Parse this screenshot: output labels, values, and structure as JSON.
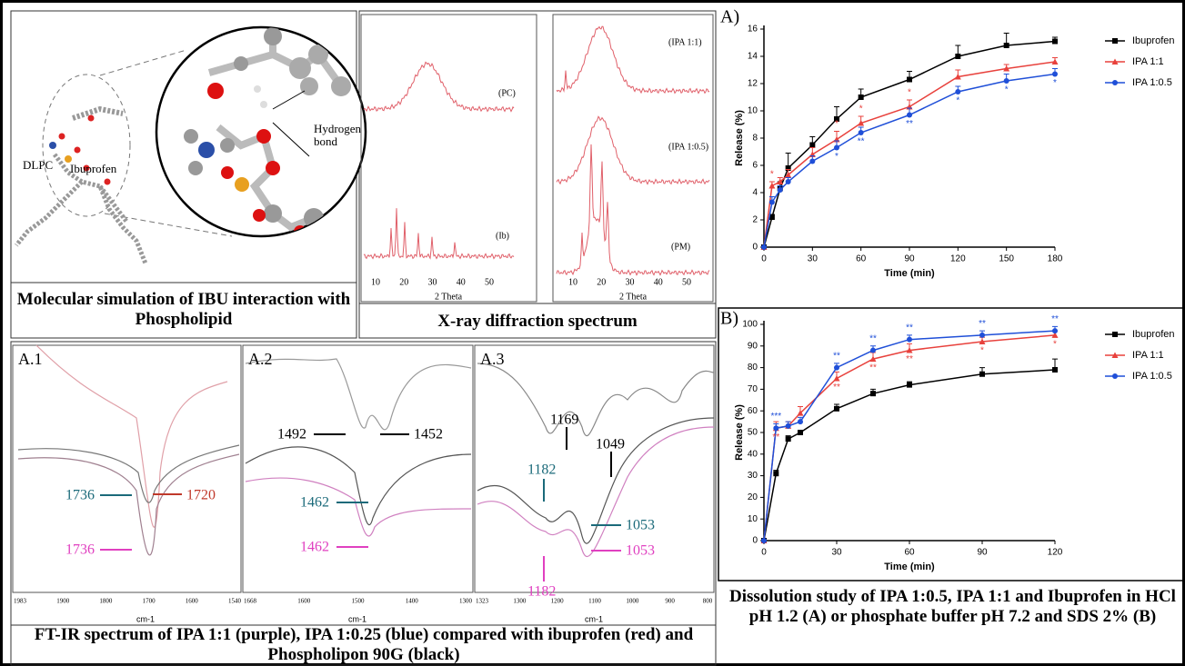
{
  "panels": {
    "molecular": {
      "ibuprofen": "Ibuprofen",
      "dlpc": "DLPC",
      "hbond": "Hydrogen bond",
      "caption": "Molecular simulation of IBU interaction with Phospholipid"
    },
    "xrd": {
      "pc": "(PC)",
      "ib": "(Ib)",
      "ipa11": "(IPA 1:1)",
      "ipa105": "(IPA 1:0.5)",
      "pm": "(PM)",
      "left_xticks": [
        10,
        20,
        30,
        40,
        50
      ],
      "right_xticks": [
        10,
        20,
        30,
        40,
        50
      ],
      "left_xlabel": "2 Theta",
      "right_xlabel": "2 Theta",
      "caption": "X-ray diffraction spectrum"
    },
    "ftir": {
      "a1": {
        "title": "A.1",
        "ticks": [
          1983,
          1900,
          1800,
          1700,
          1600,
          1540
        ],
        "unit": "cm-1",
        "labels": [
          "1736",
          "1720",
          "1736"
        ]
      },
      "a2": {
        "title": "A.2",
        "ticks": [
          1668,
          1600,
          1500,
          1400,
          1300
        ],
        "unit": "cm-1",
        "labels": [
          "1492",
          "1452",
          "1462",
          "1462"
        ]
      },
      "a3": {
        "title": "A.3",
        "ticks": [
          1323,
          1300,
          1200,
          1100,
          1000,
          900,
          800
        ],
        "unit": "cm-1",
        "labels": [
          "1169",
          "1049",
          "1182",
          "1053",
          "1182",
          "1053"
        ]
      },
      "caption": "FT-IR spectrum of IPA 1:1 (purple), IPA 1:0.25 (blue) compared with ibuprofen (red) and Phospholipon 90G (black)"
    },
    "dissolution": {
      "caption": "Dissolution study of IPA 1:0.5, IPA 1:1 and Ibuprofen in HCl pH 1.2 (A) or phosphate buffer pH 7.2 and SDS 2% (B)"
    }
  },
  "chart_data": [
    {
      "type": "line",
      "panel_label": "A)",
      "xlabel": "Time (min)",
      "ylabel": "Release (%)",
      "x": [
        0,
        5,
        10,
        15,
        30,
        45,
        60,
        90,
        120,
        150,
        180
      ],
      "xlim": [
        0,
        180
      ],
      "xticks": [
        0,
        30,
        60,
        90,
        120,
        150,
        180
      ],
      "ylim": [
        0,
        16
      ],
      "yticks": [
        0,
        2,
        4,
        6,
        8,
        10,
        12,
        14,
        16
      ],
      "series": [
        {
          "name": "Ibuprofen",
          "color": "#000000",
          "marker": "square",
          "values": [
            0,
            2.2,
            4.3,
            5.8,
            7.5,
            9.4,
            11.0,
            12.3,
            14.0,
            14.8,
            15.1
          ],
          "errors": [
            0,
            0.2,
            0.5,
            1.1,
            0.6,
            0.9,
            0.6,
            0.6,
            0.8,
            0.9,
            0.3
          ]
        },
        {
          "name": "IPA 1:1",
          "color": "#e8413c",
          "marker": "triangle",
          "values": [
            0,
            4.5,
            4.8,
            5.3,
            6.8,
            7.9,
            9.1,
            10.3,
            12.5,
            13.1,
            13.6
          ],
          "errors": [
            0,
            0.3,
            0.3,
            0.4,
            0.5,
            0.6,
            0.5,
            0.5,
            0.5,
            0.3,
            0.3
          ]
        },
        {
          "name": "IPA 1:0.5",
          "color": "#1f4fd8",
          "marker": "circle",
          "values": [
            0,
            3.3,
            4.2,
            4.8,
            6.3,
            7.3,
            8.4,
            9.7,
            11.4,
            12.2,
            12.7
          ],
          "errors": [
            0,
            0.4,
            0.3,
            0.3,
            0.4,
            0.5,
            0.4,
            0.5,
            0.4,
            0.5,
            0.4
          ]
        }
      ],
      "annotations": [
        {
          "text": "*",
          "x": 5,
          "series": 1,
          "position": "above"
        },
        {
          "text": "*",
          "x": 45,
          "series": 1,
          "position": "above"
        },
        {
          "text": "*",
          "x": 60,
          "series": 1,
          "position": "above"
        },
        {
          "text": "*",
          "x": 90,
          "series": 1,
          "position": "above"
        },
        {
          "text": "*",
          "x": 45,
          "series": 2,
          "position": "below"
        },
        {
          "text": "**",
          "x": 60,
          "series": 2,
          "position": "below"
        },
        {
          "text": "**",
          "x": 90,
          "series": 2,
          "position": "below"
        },
        {
          "text": "*",
          "x": 120,
          "series": 2,
          "position": "below"
        },
        {
          "text": "*",
          "x": 150,
          "series": 2,
          "position": "below"
        },
        {
          "text": "*",
          "x": 180,
          "series": 2,
          "position": "below"
        }
      ]
    },
    {
      "type": "line",
      "panel_label": "B)",
      "xlabel": "Time (min)",
      "ylabel": "Release (%)",
      "x": [
        0,
        5,
        10,
        15,
        30,
        45,
        60,
        90,
        120
      ],
      "xlim": [
        0,
        120
      ],
      "xticks": [
        0,
        30,
        60,
        90,
        120
      ],
      "ylim": [
        0,
        100
      ],
      "yticks": [
        0,
        10,
        20,
        30,
        40,
        50,
        60,
        70,
        80,
        90,
        100
      ],
      "series": [
        {
          "name": "Ibuprofen",
          "color": "#000000",
          "marker": "square",
          "values": [
            0,
            31,
            47,
            50,
            61,
            68,
            72,
            77,
            79
          ],
          "errors": [
            0,
            1.5,
            1.5,
            1,
            2,
            2,
            1.5,
            3,
            5
          ]
        },
        {
          "name": "IPA 1:1",
          "color": "#e8413c",
          "marker": "triangle",
          "values": [
            0,
            52,
            53,
            59,
            75,
            84,
            88,
            92,
            95
          ],
          "errors": [
            0,
            3,
            2,
            3,
            3,
            3,
            3,
            2,
            2
          ]
        },
        {
          "name": "IPA 1:0.5",
          "color": "#1f4fd8",
          "marker": "circle",
          "values": [
            0,
            52,
            53,
            55,
            80,
            88,
            93,
            95,
            97
          ],
          "errors": [
            0,
            2,
            2,
            2,
            2,
            2,
            2,
            2,
            2
          ]
        }
      ],
      "annotations": [
        {
          "text": "***",
          "x": 5,
          "series": 2,
          "position": "above"
        },
        {
          "text": "**",
          "x": 30,
          "series": 2,
          "position": "above"
        },
        {
          "text": "**",
          "x": 45,
          "series": 2,
          "position": "above"
        },
        {
          "text": "**",
          "x": 60,
          "series": 2,
          "position": "above"
        },
        {
          "text": "**",
          "x": 90,
          "series": 2,
          "position": "above"
        },
        {
          "text": "**",
          "x": 120,
          "series": 2,
          "position": "above"
        },
        {
          "text": "**",
          "x": 5,
          "series": 1,
          "position": "below"
        },
        {
          "text": "**",
          "x": 30,
          "series": 1,
          "position": "below"
        },
        {
          "text": "**",
          "x": 45,
          "series": 1,
          "position": "below"
        },
        {
          "text": "**",
          "x": 60,
          "series": 1,
          "position": "below"
        },
        {
          "text": "*",
          "x": 90,
          "series": 1,
          "position": "below"
        },
        {
          "text": "*",
          "x": 120,
          "series": 1,
          "position": "below"
        }
      ]
    }
  ]
}
